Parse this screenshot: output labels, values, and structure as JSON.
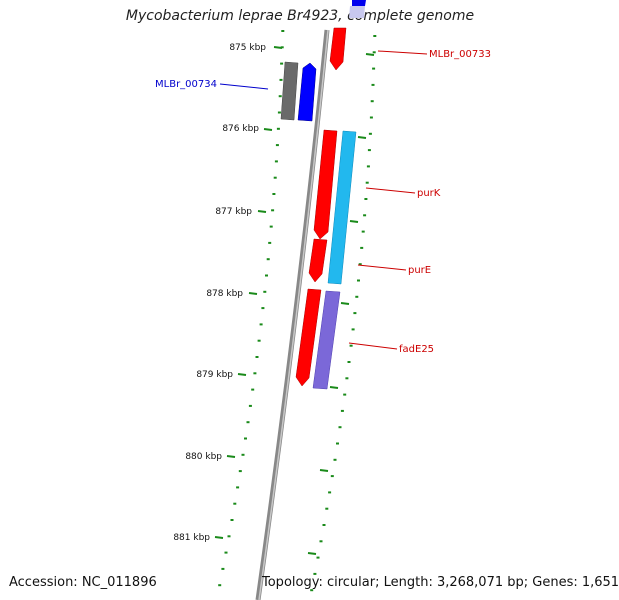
{
  "title": "Mycobacterium leprae Br4923, complete genome",
  "footer": {
    "accession": "Accession: NC_011896",
    "summary": "Topology: circular; Length: 3,268,071 bp; Genes: 1,651"
  },
  "kbp_ticks": [
    "875 kbp",
    "876 kbp",
    "877 kbp",
    "878 kbp",
    "879 kbp",
    "880 kbp",
    "881 kbp"
  ],
  "gene_labels": [
    {
      "id": "mlbr00733",
      "text": "MLBr_00733",
      "color": "#cc0000"
    },
    {
      "id": "mlbr00734",
      "text": "MLBr_00734",
      "color": "#0000cc"
    },
    {
      "id": "purk",
      "text": "purK",
      "color": "#cc0000"
    },
    {
      "id": "pure",
      "text": "purE",
      "color": "#cc0000"
    },
    {
      "id": "fade25",
      "text": "fadE25",
      "color": "#cc0000"
    }
  ],
  "colors": {
    "backbone": "#808080",
    "tick": "#1a8a1a",
    "red_gene": "#ff0000",
    "blue_gene": "#0000ff",
    "gray_gene": "#6a6a6a",
    "cyan_gene": "#22b8ee",
    "purple_gene": "#7b68d8"
  }
}
